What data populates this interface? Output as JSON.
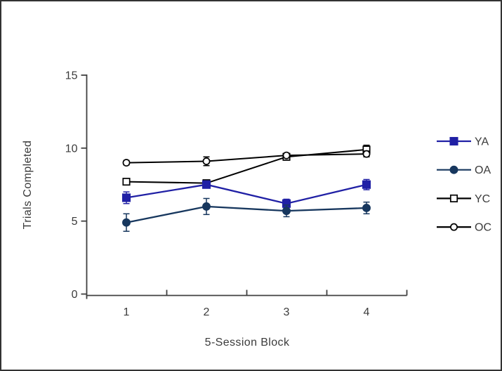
{
  "figure": {
    "background": "#ffffff",
    "border_color": "#333333",
    "text_color": "#3b3b3b",
    "axis_color": "#404040"
  },
  "chart_data": {
    "type": "line",
    "title": "",
    "xlabel": "5-Session Block",
    "ylabel": "Trials Completed",
    "categories": [
      "1",
      "2",
      "3",
      "4"
    ],
    "ylim": [
      0,
      15
    ],
    "yticks": [
      0,
      5,
      10,
      15
    ],
    "grid": false,
    "legend_position": "right",
    "error_bars": true,
    "series": [
      {
        "name": "YA",
        "color": "#2020A5",
        "marker": "square",
        "marker_style": "filled",
        "values": [
          6.6,
          7.5,
          6.2,
          7.5
        ],
        "errors": [
          0.4,
          0.2,
          0.3,
          0.35
        ]
      },
      {
        "name": "OA",
        "color": "#17375E",
        "marker": "circle",
        "marker_style": "filled",
        "values": [
          4.9,
          6.0,
          5.7,
          5.9
        ],
        "errors": [
          0.6,
          0.55,
          0.4,
          0.4
        ]
      },
      {
        "name": "YC",
        "color": "#000000",
        "marker": "square",
        "marker_style": "open",
        "values": [
          7.7,
          7.6,
          9.4,
          9.9
        ],
        "errors": [
          0.2,
          0.2,
          0.2,
          0.3
        ]
      },
      {
        "name": "OC",
        "color": "#000000",
        "marker": "circle",
        "marker_style": "open",
        "values": [
          9.0,
          9.1,
          9.5,
          9.6
        ],
        "errors": [
          0.15,
          0.3,
          0.15,
          0.2
        ]
      }
    ]
  }
}
